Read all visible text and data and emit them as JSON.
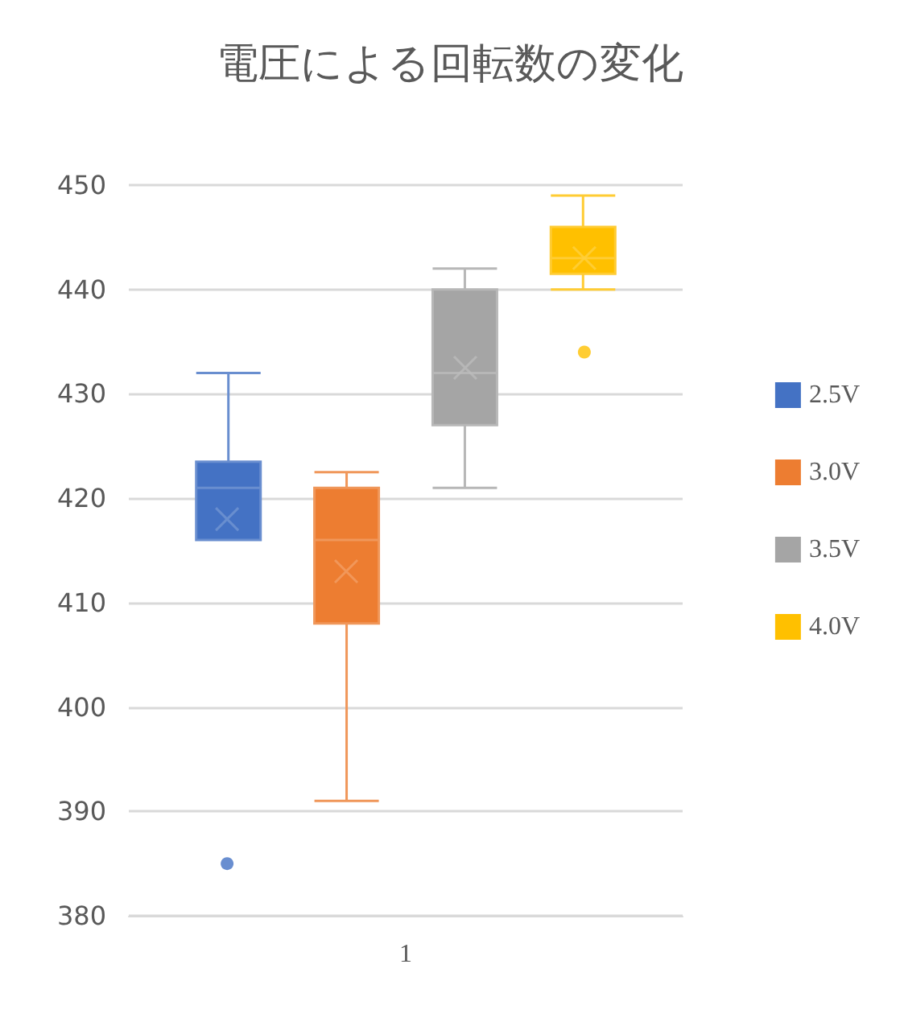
{
  "chart_data": {
    "type": "box",
    "title": "電圧による回転数の変化",
    "categories": [
      "1"
    ],
    "series": [
      {
        "name": "2.5V",
        "color": "#4472c4",
        "boxes": [
          {
            "low": 416,
            "q1": 416,
            "median": 421,
            "q3": 423.5,
            "high": 432,
            "mean": 418,
            "outliers": [
              385
            ]
          }
        ]
      },
      {
        "name": "3.0V",
        "color": "#ed7d31",
        "boxes": [
          {
            "low": 391,
            "q1": 408,
            "median": 416,
            "q3": 421,
            "high": 422.5,
            "mean": 413
          }
        ]
      },
      {
        "name": "3.5V",
        "color": "#a5a5a5",
        "boxes": [
          {
            "low": 421,
            "q1": 427,
            "median": 432,
            "q3": 440,
            "high": 442,
            "mean": 432.5
          }
        ]
      },
      {
        "name": "4.0V",
        "color": "#ffc000",
        "boxes": [
          {
            "low": 440,
            "q1": 441.5,
            "median": 443,
            "q3": 446,
            "high": 449,
            "mean": 443,
            "outliers": [
              434
            ]
          }
        ]
      }
    ],
    "ylim": [
      380,
      450
    ],
    "yticks": [
      380,
      390,
      400,
      410,
      420,
      430,
      440,
      450
    ],
    "grid": "y",
    "legend": "right"
  }
}
